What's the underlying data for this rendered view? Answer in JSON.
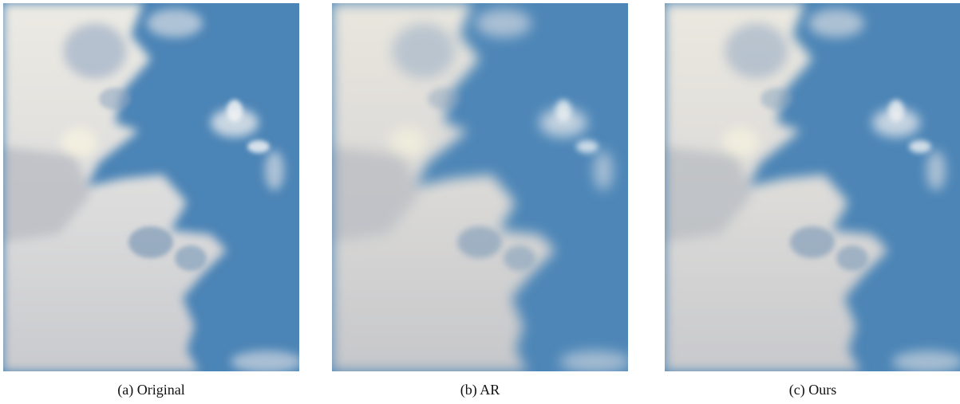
{
  "captions": {
    "a": "(a) Original",
    "b": "(b) AR",
    "c": "(c) Ours"
  },
  "colors": {
    "sky": "#4b84b6",
    "cloud_light": "#eceae3",
    "cloud_shadow": "#b9bcc3"
  }
}
